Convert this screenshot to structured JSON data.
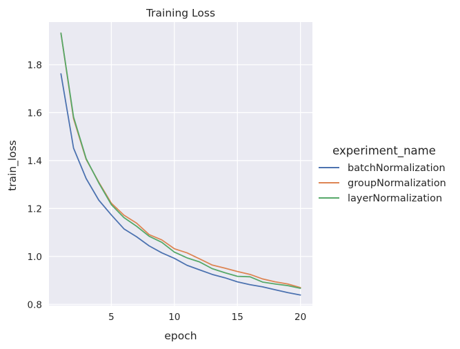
{
  "chart_data": {
    "type": "line",
    "title": "Training Loss",
    "xlabel": "epoch",
    "ylabel": "train_loss",
    "xlim": [
      0.05,
      20.95
    ],
    "ylim": [
      0.795,
      1.978
    ],
    "x_ticks": [
      5,
      10,
      15,
      20
    ],
    "y_ticks": [
      0.8,
      1.0,
      1.2,
      1.4,
      1.6,
      1.8
    ],
    "grid": true,
    "legend": {
      "title": "experiment_name",
      "placement": "right"
    },
    "x": [
      1,
      2,
      3,
      4,
      5,
      6,
      7,
      8,
      9,
      10,
      11,
      12,
      13,
      14,
      15,
      16,
      17,
      18,
      19,
      20
    ],
    "series": [
      {
        "name": "batchNormalization",
        "color": "#4c72b0",
        "values": [
          1.762,
          1.452,
          1.325,
          1.235,
          1.173,
          1.115,
          1.082,
          1.044,
          1.015,
          0.992,
          0.963,
          0.944,
          0.925,
          0.911,
          0.894,
          0.882,
          0.873,
          0.861,
          0.849,
          0.839
        ]
      },
      {
        "name": "groupNormalization",
        "color": "#dd8452",
        "values": [
          1.932,
          1.575,
          1.405,
          1.31,
          1.222,
          1.172,
          1.139,
          1.091,
          1.069,
          1.032,
          1.015,
          0.99,
          0.964,
          0.951,
          0.937,
          0.925,
          0.906,
          0.894,
          0.885,
          0.87
        ]
      },
      {
        "name": "layerNormalization",
        "color": "#55a868",
        "values": [
          1.932,
          1.582,
          1.408,
          1.307,
          1.216,
          1.162,
          1.126,
          1.084,
          1.059,
          1.018,
          0.994,
          0.977,
          0.949,
          0.932,
          0.917,
          0.915,
          0.893,
          0.885,
          0.878,
          0.867
        ]
      }
    ]
  }
}
